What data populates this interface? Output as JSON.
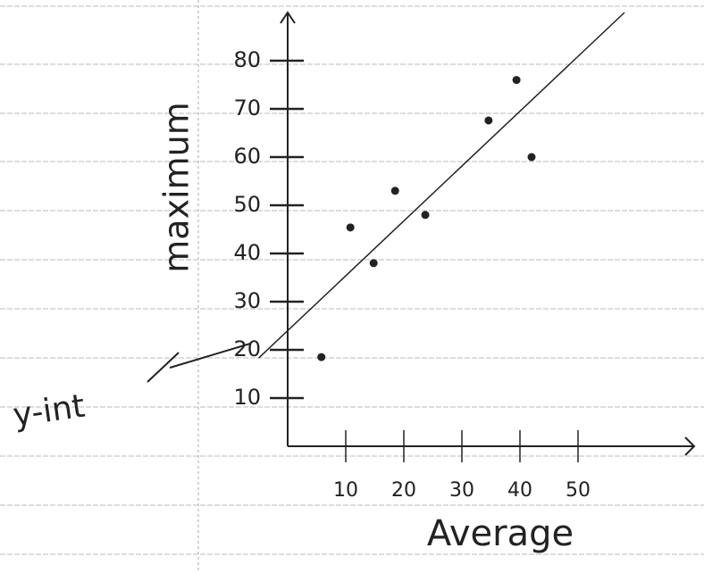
{
  "chart_data": {
    "type": "scatter",
    "x_label": "Average",
    "y_label": "maximum",
    "annotation": "y-int",
    "x": [
      5.8,
      10.8,
      14.8,
      18.5,
      23.7,
      34.6,
      39.4,
      42
    ],
    "values": [
      18.5,
      45.4,
      38,
      53,
      48,
      67.6,
      76,
      60
    ],
    "color": "#222",
    "trend_line": {
      "x": [
        -5,
        58
      ],
      "y": [
        18.3,
        90
      ]
    },
    "xlim": [
      0,
      70
    ],
    "ylim": [
      0,
      90
    ],
    "xticks": [
      10,
      20,
      30,
      40,
      50
    ],
    "yticks": [
      10,
      20,
      30,
      40,
      50,
      60,
      70,
      80
    ]
  }
}
